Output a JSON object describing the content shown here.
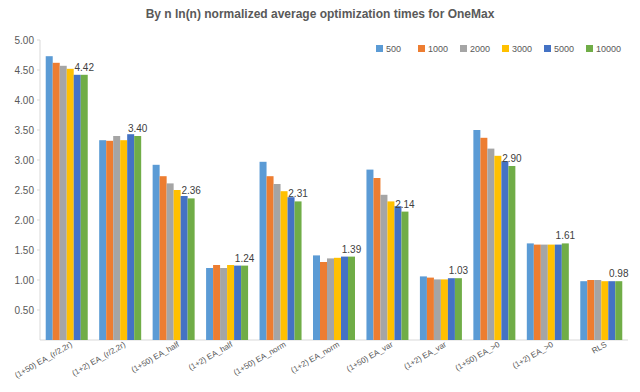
{
  "chart_data": {
    "type": "bar",
    "title": "By n ln(n) normalized average optimization times for OneMax",
    "categories": [
      "(1+50) EA_(r/2,2r)",
      "(1+2) EA_(r/2,2r)",
      "(1+50) EA_half",
      "(1+2) EA_half",
      "(1+50) EA_norm",
      "(1+2) EA_norm",
      "(1+50) EA_var",
      "(1+2) EA_var",
      "(1+50) EA_>0",
      "(1+2) EA_>0",
      "RLS"
    ],
    "series": [
      {
        "name": "500",
        "color": "#5b9bd5",
        "values": [
          4.73,
          3.33,
          2.92,
          1.2,
          2.97,
          1.41,
          2.84,
          1.06,
          3.5,
          1.61,
          0.98
        ]
      },
      {
        "name": "1000",
        "color": "#ed7d31",
        "values": [
          4.62,
          3.32,
          2.73,
          1.25,
          2.73,
          1.3,
          2.7,
          1.04,
          3.37,
          1.59,
          1.0
        ]
      },
      {
        "name": "2000",
        "color": "#a5a5a5",
        "values": [
          4.57,
          3.4,
          2.61,
          1.2,
          2.6,
          1.36,
          2.42,
          1.01,
          3.19,
          1.59,
          1.0
        ]
      },
      {
        "name": "3000",
        "color": "#ffc000",
        "values": [
          4.52,
          3.33,
          2.5,
          1.25,
          2.48,
          1.37,
          2.31,
          1.01,
          3.07,
          1.59,
          0.98
        ]
      },
      {
        "name": "5000",
        "color": "#4472c4",
        "values": [
          4.42,
          3.43,
          2.4,
          1.24,
          2.38,
          1.39,
          2.23,
          1.03,
          2.98,
          1.59,
          0.98
        ]
      },
      {
        "name": "10000",
        "color": "#70ad47",
        "values": [
          4.42,
          3.4,
          2.36,
          1.24,
          2.31,
          1.39,
          2.14,
          1.03,
          2.9,
          1.61,
          0.98
        ],
        "data_labels": true,
        "value_labels": [
          "4.42",
          "3.40",
          "2.36",
          "1.24",
          "2.31",
          "1.39",
          "2.14",
          "1.03",
          "2.90",
          "1.61",
          "0.98"
        ]
      }
    ],
    "ylim": [
      0,
      5
    ],
    "yticks": [
      {
        "value": 0.5,
        "label": "0.50"
      },
      {
        "value": 1,
        "label": "1.00"
      },
      {
        "value": 1.5,
        "label": "1.50"
      },
      {
        "value": 2,
        "label": "2.00"
      },
      {
        "value": 2.5,
        "label": "2.50"
      },
      {
        "value": 3,
        "label": "3.00"
      },
      {
        "value": 3.5,
        "label": "3.50"
      },
      {
        "value": 4,
        "label": "4.00"
      },
      {
        "value": 4.5,
        "label": "4.50"
      },
      {
        "value": 5,
        "label": "5.00"
      }
    ],
    "grid": false,
    "legend": "top-right"
  }
}
